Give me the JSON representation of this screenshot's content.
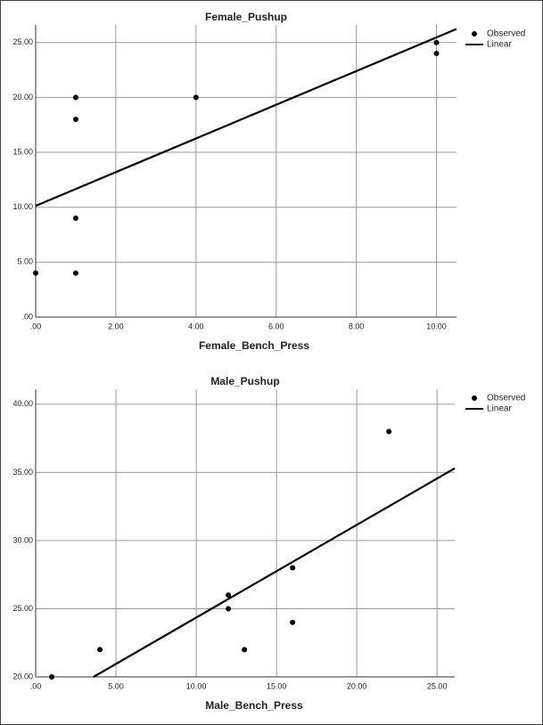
{
  "chart_data": [
    {
      "type": "scatter",
      "title": "Female_Pushup",
      "x_label": "Female_Bench_Press",
      "series": [
        {
          "name": "Observed",
          "color": "#000000",
          "marker": "dot",
          "x": [
            0,
            1,
            1,
            1,
            1,
            4,
            10,
            10
          ],
          "values": [
            4,
            4,
            9,
            18,
            20,
            20,
            24,
            25
          ]
        },
        {
          "name": "Linear",
          "color": "#000000",
          "marker": "line",
          "x": [
            0,
            10.5
          ],
          "values": [
            10.13,
            26.23
          ]
        }
      ],
      "xlim": [
        0,
        10.5
      ],
      "ylim": [
        0,
        26.6
      ],
      "xticks": [
        {
          "value": 0,
          "label": ".00"
        },
        {
          "value": 2,
          "label": "2.00"
        },
        {
          "value": 4,
          "label": "4.00"
        },
        {
          "value": 6,
          "label": "6.00"
        },
        {
          "value": 8,
          "label": "8.00"
        },
        {
          "value": 10,
          "label": "10.00"
        }
      ],
      "yticks": [
        {
          "value": 0,
          "label": ".00"
        },
        {
          "value": 5,
          "label": "5.00"
        },
        {
          "value": 10,
          "label": "10.00"
        },
        {
          "value": 15,
          "label": "15.00"
        },
        {
          "value": 20,
          "label": "20.00"
        },
        {
          "value": 25,
          "label": "25.00"
        }
      ],
      "grid": true,
      "legend": "right"
    },
    {
      "type": "scatter",
      "title": "Male_Pushup",
      "x_label": "Male_Bench_Press",
      "series": [
        {
          "name": "Observed",
          "color": "#000000",
          "marker": "dot",
          "x": [
            1,
            4,
            12,
            12,
            13,
            16,
            16,
            22
          ],
          "values": [
            20,
            22,
            26,
            25,
            22,
            28,
            24,
            38
          ]
        },
        {
          "name": "Linear",
          "color": "#000000",
          "marker": "line",
          "x": [
            3.6,
            26.1
          ],
          "values": [
            20,
            35.3
          ]
        }
      ],
      "xlim": [
        0,
        26.1
      ],
      "ylim": [
        20,
        41.1
      ],
      "xticks": [
        {
          "value": 0,
          "label": ".00"
        },
        {
          "value": 5,
          "label": "5.00"
        },
        {
          "value": 10,
          "label": "10.00"
        },
        {
          "value": 15,
          "label": "15.00"
        },
        {
          "value": 20,
          "label": "20.00"
        },
        {
          "value": 25,
          "label": "25.00"
        }
      ],
      "yticks": [
        {
          "value": 20,
          "label": "20.00"
        },
        {
          "value": 25,
          "label": "25.00"
        },
        {
          "value": 30,
          "label": "30.00"
        },
        {
          "value": 35,
          "label": "35.00"
        },
        {
          "value": 40,
          "label": "40.00"
        }
      ],
      "grid": true,
      "legend": "right"
    }
  ]
}
